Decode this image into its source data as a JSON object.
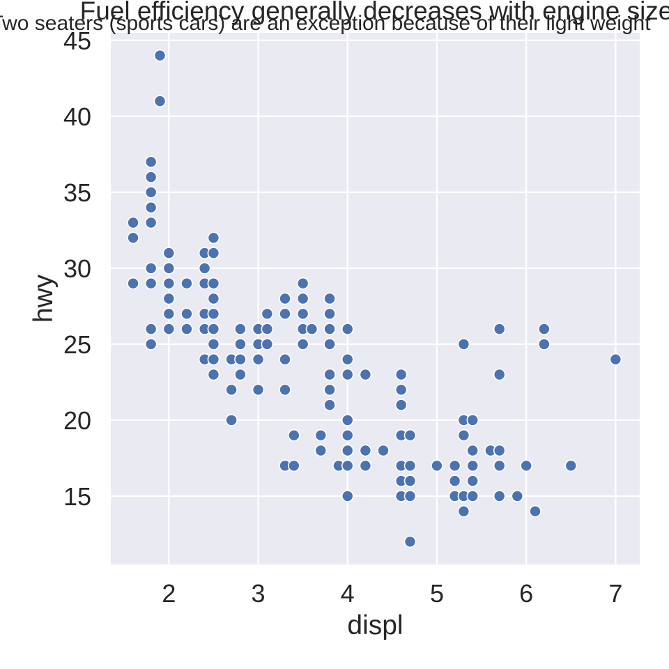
{
  "chart_data": {
    "type": "scatter",
    "title": "Fuel efficiency generally decreases with engine size",
    "subtitle": "Two seaters (sports cars) are an exception because of their light weight",
    "xlabel": "displ",
    "ylabel": "hwy",
    "xlim": [
      1.35,
      7.27
    ],
    "ylim": [
      10.5,
      45.5
    ],
    "xticks": [
      2,
      3,
      4,
      5,
      6,
      7
    ],
    "yticks": [
      15,
      20,
      25,
      30,
      35,
      40,
      45
    ],
    "grid": true,
    "colors": {
      "background": "#eaeaf2",
      "grid": "#ffffff",
      "point": "#4c72b0",
      "point_edge": "#ffffff",
      "text": "#262626"
    },
    "points": [
      [
        1.6,
        33
      ],
      [
        1.6,
        32
      ],
      [
        1.6,
        29
      ],
      [
        1.8,
        37
      ],
      [
        1.8,
        36
      ],
      [
        1.8,
        35
      ],
      [
        1.8,
        34
      ],
      [
        1.8,
        33
      ],
      [
        1.8,
        30
      ],
      [
        1.8,
        29
      ],
      [
        1.8,
        26
      ],
      [
        1.8,
        25
      ],
      [
        1.9,
        44
      ],
      [
        1.9,
        41
      ],
      [
        2.0,
        31
      ],
      [
        2.0,
        30
      ],
      [
        2.0,
        29
      ],
      [
        2.0,
        28
      ],
      [
        2.0,
        27
      ],
      [
        2.0,
        26
      ],
      [
        2.2,
        29
      ],
      [
        2.2,
        27
      ],
      [
        2.2,
        26
      ],
      [
        2.4,
        31
      ],
      [
        2.4,
        30
      ],
      [
        2.4,
        29
      ],
      [
        2.4,
        27
      ],
      [
        2.4,
        26
      ],
      [
        2.4,
        24
      ],
      [
        2.5,
        32
      ],
      [
        2.5,
        31
      ],
      [
        2.5,
        29
      ],
      [
        2.5,
        28
      ],
      [
        2.5,
        27
      ],
      [
        2.5,
        26
      ],
      [
        2.5,
        25
      ],
      [
        2.5,
        24
      ],
      [
        2.5,
        23
      ],
      [
        2.7,
        24
      ],
      [
        2.7,
        22
      ],
      [
        2.7,
        20
      ],
      [
        2.8,
        26
      ],
      [
        2.8,
        25
      ],
      [
        2.8,
        24
      ],
      [
        2.8,
        23
      ],
      [
        3.0,
        26
      ],
      [
        3.0,
        25
      ],
      [
        3.0,
        24
      ],
      [
        3.0,
        22
      ],
      [
        3.1,
        27
      ],
      [
        3.1,
        26
      ],
      [
        3.1,
        25
      ],
      [
        3.3,
        28
      ],
      [
        3.3,
        27
      ],
      [
        3.3,
        24
      ],
      [
        3.3,
        22
      ],
      [
        3.3,
        17
      ],
      [
        3.4,
        19
      ],
      [
        3.4,
        17
      ],
      [
        3.5,
        29
      ],
      [
        3.5,
        28
      ],
      [
        3.5,
        27
      ],
      [
        3.5,
        26
      ],
      [
        3.5,
        25
      ],
      [
        3.6,
        26
      ],
      [
        3.7,
        19
      ],
      [
        3.7,
        18
      ],
      [
        3.8,
        28
      ],
      [
        3.8,
        27
      ],
      [
        3.8,
        26
      ],
      [
        3.8,
        25
      ],
      [
        3.8,
        23
      ],
      [
        3.8,
        22
      ],
      [
        3.8,
        21
      ],
      [
        3.9,
        17
      ],
      [
        4.0,
        26
      ],
      [
        4.0,
        24
      ],
      [
        4.0,
        23
      ],
      [
        4.0,
        20
      ],
      [
        4.0,
        19
      ],
      [
        4.0,
        18
      ],
      [
        4.0,
        17
      ],
      [
        4.0,
        15
      ],
      [
        4.2,
        23
      ],
      [
        4.2,
        18
      ],
      [
        4.2,
        17
      ],
      [
        4.4,
        18
      ],
      [
        4.6,
        23
      ],
      [
        4.6,
        22
      ],
      [
        4.6,
        21
      ],
      [
        4.6,
        19
      ],
      [
        4.6,
        17
      ],
      [
        4.6,
        16
      ],
      [
        4.6,
        15
      ],
      [
        4.7,
        19
      ],
      [
        4.7,
        17
      ],
      [
        4.7,
        16
      ],
      [
        4.7,
        15
      ],
      [
        4.7,
        12
      ],
      [
        5.0,
        17
      ],
      [
        5.2,
        17
      ],
      [
        5.2,
        16
      ],
      [
        5.2,
        15
      ],
      [
        5.3,
        25
      ],
      [
        5.3,
        20
      ],
      [
        5.3,
        19
      ],
      [
        5.3,
        15
      ],
      [
        5.3,
        14
      ],
      [
        5.4,
        20
      ],
      [
        5.4,
        18
      ],
      [
        5.4,
        17
      ],
      [
        5.4,
        16
      ],
      [
        5.4,
        15
      ],
      [
        5.6,
        18
      ],
      [
        5.7,
        26
      ],
      [
        5.7,
        23
      ],
      [
        5.7,
        18
      ],
      [
        5.7,
        17
      ],
      [
        5.7,
        15
      ],
      [
        5.9,
        15
      ],
      [
        6.0,
        17
      ],
      [
        6.1,
        14
      ],
      [
        6.2,
        26
      ],
      [
        6.2,
        25
      ],
      [
        6.5,
        17
      ],
      [
        7.0,
        24
      ]
    ]
  }
}
